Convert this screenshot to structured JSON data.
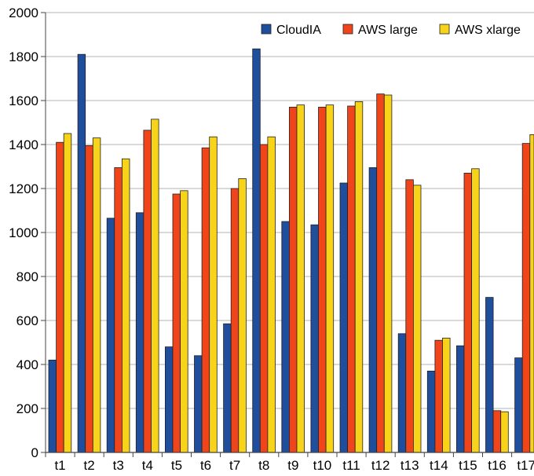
{
  "chart_data": {
    "type": "bar",
    "categories": [
      "t1",
      "t2",
      "t3",
      "t4",
      "t5",
      "t6",
      "t7",
      "t8",
      "t9",
      "t10",
      "t11",
      "t12",
      "t13",
      "t14",
      "t15",
      "t16",
      "t17"
    ],
    "series": [
      {
        "name": "CloudIA",
        "color": "#1f4e9c",
        "values": [
          420,
          1810,
          1065,
          1090,
          480,
          440,
          585,
          1835,
          1050,
          1035,
          1225,
          1295,
          540,
          370,
          485,
          705,
          430
        ]
      },
      {
        "name": "AWS large",
        "color": "#f0451a",
        "values": [
          1410,
          1395,
          1295,
          1465,
          1175,
          1385,
          1200,
          1400,
          1570,
          1570,
          1575,
          1630,
          1240,
          510,
          1270,
          190,
          1405
        ]
      },
      {
        "name": "AWS xlarge",
        "color": "#f7d319",
        "values": [
          1450,
          1430,
          1335,
          1515,
          1190,
          1435,
          1245,
          1435,
          1580,
          1580,
          1595,
          1625,
          1215,
          520,
          1290,
          185,
          1445
        ]
      }
    ],
    "ylim": [
      0,
      2000
    ],
    "yticks": [
      "0",
      "200",
      "400",
      "600",
      "800",
      "1000",
      "1200",
      "1400",
      "1600",
      "1800",
      "2000"
    ],
    "grid": true,
    "legend_position": "top-right",
    "title": "",
    "xlabel": "",
    "ylabel": ""
  }
}
